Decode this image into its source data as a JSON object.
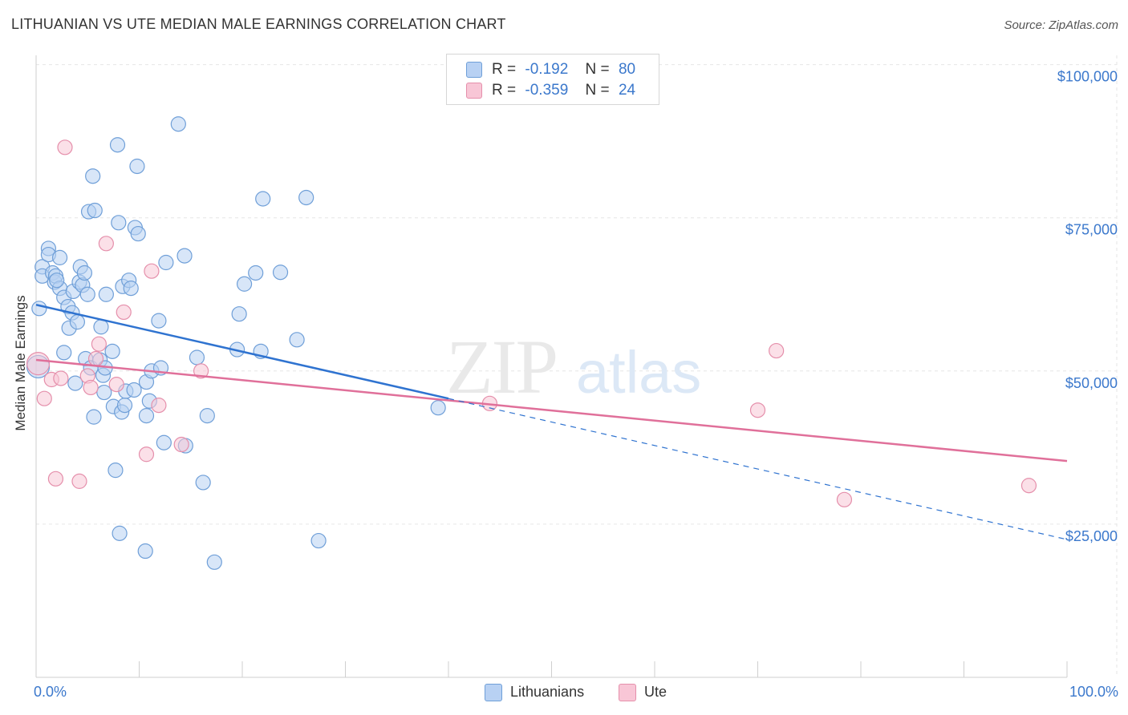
{
  "title": "LITHUANIAN VS UTE MEDIAN MALE EARNINGS CORRELATION CHART",
  "source": "Source: ZipAtlas.com",
  "colors": {
    "series1_fill": "#b8d1f3",
    "series1_stroke": "#6f9fd8",
    "series1_line": "#2f73d0",
    "series2_fill": "#f8c6d6",
    "series2_stroke": "#e58fab",
    "series2_line": "#e0709a",
    "tick_text": "#3b78cc",
    "grid": "#e6e6e6"
  },
  "legend": {
    "row1": {
      "r_label": "R =",
      "r_value": "-0.192",
      "n_label": "N =",
      "n_value": "80"
    },
    "row2": {
      "r_label": "R =",
      "r_value": "-0.359",
      "n_label": "N =",
      "n_value": "24"
    }
  },
  "bottom_legend": {
    "series1": "Lithuanians",
    "series2": "Ute"
  },
  "watermark": {
    "part1": "ZIP",
    "part2": "atlas"
  },
  "chart_data": {
    "type": "scatter",
    "title": "LITHUANIAN VS UTE MEDIAN MALE EARNINGS CORRELATION CHART",
    "xlabel": "",
    "ylabel": "Median Male Earnings",
    "xlim": [
      0,
      100
    ],
    "ylim": [
      0,
      105000
    ],
    "x_tick_labels": {
      "left": "0.0%",
      "right": "100.0%"
    },
    "y_ticks": [
      {
        "value": 100000,
        "label": "$100,000"
      },
      {
        "value": 75000,
        "label": "$75,000"
      },
      {
        "value": 50000,
        "label": "$50,000"
      },
      {
        "value": 25000,
        "label": "$25,000"
      }
    ],
    "grid": true,
    "legend_position": "top-center",
    "series": [
      {
        "name": "Lithuanians",
        "r": -0.192,
        "n": 80,
        "points": [
          [
            0.3,
            60200
          ],
          [
            0.6,
            67000
          ],
          [
            0.6,
            65500
          ],
          [
            1.2,
            70000
          ],
          [
            1.2,
            69000
          ],
          [
            1.6,
            66000
          ],
          [
            1.8,
            64500
          ],
          [
            1.9,
            65500
          ],
          [
            2.3,
            63500
          ],
          [
            2.3,
            68500
          ],
          [
            2.7,
            62000
          ],
          [
            2.7,
            53000
          ],
          [
            3.1,
            60500
          ],
          [
            3.2,
            57000
          ],
          [
            3.5,
            59500
          ],
          [
            3.6,
            63000
          ],
          [
            3.8,
            48000
          ],
          [
            4.0,
            58000
          ],
          [
            4.2,
            64500
          ],
          [
            4.3,
            67000
          ],
          [
            4.5,
            64000
          ],
          [
            4.7,
            66000
          ],
          [
            4.8,
            52000
          ],
          [
            5.0,
            62500
          ],
          [
            5.1,
            76000
          ],
          [
            5.3,
            50500
          ],
          [
            5.5,
            81800
          ],
          [
            5.6,
            42500
          ],
          [
            5.7,
            76200
          ],
          [
            6.2,
            51800
          ],
          [
            6.3,
            57200
          ],
          [
            6.5,
            49300
          ],
          [
            6.6,
            46500
          ],
          [
            6.7,
            50500
          ],
          [
            6.8,
            62500
          ],
          [
            7.4,
            53200
          ],
          [
            7.5,
            44200
          ],
          [
            7.7,
            33800
          ],
          [
            7.9,
            86900
          ],
          [
            8.0,
            74200
          ],
          [
            8.1,
            23500
          ],
          [
            8.3,
            43300
          ],
          [
            8.4,
            63800
          ],
          [
            8.6,
            44400
          ],
          [
            8.7,
            46700
          ],
          [
            9.0,
            64800
          ],
          [
            9.2,
            63500
          ],
          [
            9.5,
            46900
          ],
          [
            9.6,
            73400
          ],
          [
            9.8,
            83400
          ],
          [
            9.9,
            72400
          ],
          [
            10.6,
            20600
          ],
          [
            10.7,
            42700
          ],
          [
            10.7,
            48200
          ],
          [
            11.0,
            45100
          ],
          [
            11.2,
            50000
          ],
          [
            11.9,
            58200
          ],
          [
            12.1,
            50500
          ],
          [
            12.4,
            38300
          ],
          [
            12.6,
            67700
          ],
          [
            13.8,
            90300
          ],
          [
            14.4,
            68800
          ],
          [
            14.5,
            37800
          ],
          [
            15.6,
            52200
          ],
          [
            16.2,
            31800
          ],
          [
            16.6,
            42700
          ],
          [
            17.3,
            18800
          ],
          [
            19.5,
            53500
          ],
          [
            19.7,
            59300
          ],
          [
            20.2,
            64200
          ],
          [
            21.3,
            66000
          ],
          [
            21.8,
            53200
          ],
          [
            22.0,
            78100
          ],
          [
            23.7,
            66100
          ],
          [
            25.3,
            55100
          ],
          [
            26.2,
            78300
          ],
          [
            27.4,
            22300
          ],
          [
            39.0,
            44000
          ],
          [
            0.2,
            50700
          ],
          [
            2.0,
            64800
          ]
        ],
        "trend": {
          "x": [
            0,
            40
          ],
          "y": [
            60800,
            45500
          ],
          "dashed_extension": {
            "x": [
              40,
              100
            ],
            "y": [
              45500,
              22500
            ]
          }
        }
      },
      {
        "name": "Ute",
        "r": -0.359,
        "n": 24,
        "points": [
          [
            0.2,
            51200
          ],
          [
            0.8,
            45500
          ],
          [
            1.5,
            48600
          ],
          [
            1.9,
            32400
          ],
          [
            2.4,
            48800
          ],
          [
            2.8,
            86500
          ],
          [
            4.2,
            32000
          ],
          [
            5.0,
            49200
          ],
          [
            5.3,
            47300
          ],
          [
            5.8,
            52000
          ],
          [
            6.1,
            54400
          ],
          [
            6.8,
            70800
          ],
          [
            7.8,
            47800
          ],
          [
            8.5,
            59600
          ],
          [
            10.7,
            36400
          ],
          [
            11.2,
            66300
          ],
          [
            11.9,
            44400
          ],
          [
            14.1,
            38000
          ],
          [
            16.0,
            50000
          ],
          [
            44.0,
            44700
          ],
          [
            70.0,
            43600
          ],
          [
            71.8,
            53300
          ],
          [
            78.4,
            29000
          ],
          [
            96.3,
            31300
          ]
        ],
        "trend": {
          "x": [
            0,
            100
          ],
          "y": [
            51800,
            35300
          ]
        }
      }
    ]
  }
}
